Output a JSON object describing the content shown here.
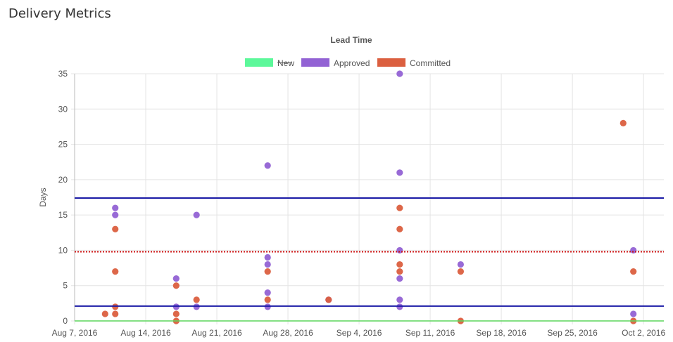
{
  "page": {
    "title": "Delivery Metrics"
  },
  "chart_data": {
    "type": "scatter",
    "title": "Lead Time",
    "xlabel": "",
    "ylabel": "Days",
    "x_axis": {
      "type": "date",
      "range": [
        "2016-08-07",
        "2016-10-04"
      ],
      "ticks": [
        {
          "date": "2016-08-07",
          "label": "Aug 7, 2016"
        },
        {
          "date": "2016-08-14",
          "label": "Aug 14, 2016"
        },
        {
          "date": "2016-08-21",
          "label": "Aug 21, 2016"
        },
        {
          "date": "2016-08-28",
          "label": "Aug 28, 2016"
        },
        {
          "date": "2016-09-04",
          "label": "Sep 4, 2016"
        },
        {
          "date": "2016-09-11",
          "label": "Sep 11, 2016"
        },
        {
          "date": "2016-09-18",
          "label": "Sep 18, 2016"
        },
        {
          "date": "2016-09-25",
          "label": "Sep 25, 2016"
        },
        {
          "date": "2016-10-02",
          "label": "Oct 2, 2016"
        }
      ]
    },
    "y_axis": {
      "min": 0,
      "max": 35,
      "step": 5,
      "ticks": [
        "0",
        "5",
        "10",
        "15",
        "20",
        "25",
        "30",
        "35"
      ]
    },
    "grid": true,
    "legend": {
      "placement": "top-center",
      "items": [
        {
          "name": "New",
          "color": "#5cf89a",
          "hidden": true
        },
        {
          "name": "Approved",
          "color": "#9262d4"
        },
        {
          "name": "Committed",
          "color": "#db5f3f"
        }
      ]
    },
    "series": [
      {
        "name": "Approved",
        "color": "#9262d4",
        "points": [
          {
            "x": "2016-08-11",
            "y": 16
          },
          {
            "x": "2016-08-11",
            "y": 15
          },
          {
            "x": "2016-08-17",
            "y": 6
          },
          {
            "x": "2016-08-17",
            "y": 2
          },
          {
            "x": "2016-08-19",
            "y": 15
          },
          {
            "x": "2016-08-19",
            "y": 2
          },
          {
            "x": "2016-08-26",
            "y": 22
          },
          {
            "x": "2016-08-26",
            "y": 9
          },
          {
            "x": "2016-08-26",
            "y": 8
          },
          {
            "x": "2016-08-26",
            "y": 4
          },
          {
            "x": "2016-08-26",
            "y": 2
          },
          {
            "x": "2016-09-01",
            "y": 3
          },
          {
            "x": "2016-09-08",
            "y": 35
          },
          {
            "x": "2016-09-08",
            "y": 21
          },
          {
            "x": "2016-09-08",
            "y": 10
          },
          {
            "x": "2016-09-08",
            "y": 6
          },
          {
            "x": "2016-09-08",
            "y": 3
          },
          {
            "x": "2016-09-08",
            "y": 2
          },
          {
            "x": "2016-09-14",
            "y": 8
          },
          {
            "x": "2016-10-01",
            "y": 10
          },
          {
            "x": "2016-10-01",
            "y": 1
          }
        ]
      },
      {
        "name": "Committed",
        "color": "#db5f3f",
        "points": [
          {
            "x": "2016-08-10",
            "y": 1
          },
          {
            "x": "2016-08-11",
            "y": 13
          },
          {
            "x": "2016-08-11",
            "y": 7
          },
          {
            "x": "2016-08-11",
            "y": 2
          },
          {
            "x": "2016-08-11",
            "y": 1
          },
          {
            "x": "2016-08-17",
            "y": 5
          },
          {
            "x": "2016-08-17",
            "y": 1
          },
          {
            "x": "2016-08-17",
            "y": 0
          },
          {
            "x": "2016-08-19",
            "y": 3
          },
          {
            "x": "2016-08-26",
            "y": 7
          },
          {
            "x": "2016-08-26",
            "y": 3
          },
          {
            "x": "2016-09-01",
            "y": 3
          },
          {
            "x": "2016-09-08",
            "y": 16
          },
          {
            "x": "2016-09-08",
            "y": 13
          },
          {
            "x": "2016-09-08",
            "y": 8
          },
          {
            "x": "2016-09-08",
            "y": 7
          },
          {
            "x": "2016-09-14",
            "y": 7
          },
          {
            "x": "2016-09-14",
            "y": 0
          },
          {
            "x": "2016-09-30",
            "y": 28
          },
          {
            "x": "2016-10-01",
            "y": 7
          },
          {
            "x": "2016-10-01",
            "y": 0
          }
        ]
      }
    ],
    "reference_lines": [
      {
        "y": 17.4,
        "color": "#1a1aa6",
        "style": "solid"
      },
      {
        "y": 9.8,
        "color": "#cc1111",
        "style": "dotted"
      },
      {
        "y": 2.1,
        "color": "#1a1aa6",
        "style": "solid"
      },
      {
        "y": 0,
        "color": "#5cd65c",
        "style": "solid"
      }
    ]
  }
}
